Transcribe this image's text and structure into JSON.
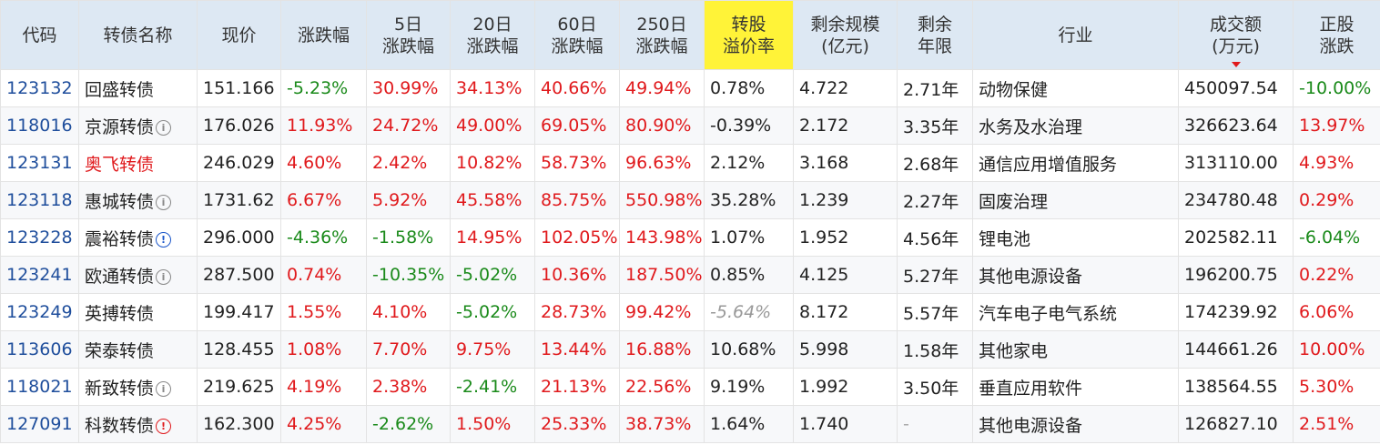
{
  "columns": [
    {
      "l1": "代码",
      "l2": ""
    },
    {
      "l1": "转债名称",
      "l2": ""
    },
    {
      "l1": "现价",
      "l2": ""
    },
    {
      "l1": "涨跌幅",
      "l2": ""
    },
    {
      "l1": "5日",
      "l2": "涨跌幅"
    },
    {
      "l1": "20日",
      "l2": "涨跌幅"
    },
    {
      "l1": "60日",
      "l2": "涨跌幅"
    },
    {
      "l1": "250日",
      "l2": "涨跌幅"
    },
    {
      "l1": "转股",
      "l2": "溢价率"
    },
    {
      "l1": "剩余规模",
      "l2": "(亿元)"
    },
    {
      "l1": "剩余",
      "l2": "年限"
    },
    {
      "l1": "行业",
      "l2": ""
    },
    {
      "l1": "成交额",
      "l2": "(万元)"
    },
    {
      "l1": "正股",
      "l2": "涨跌"
    }
  ],
  "sorted_column": "成交额",
  "sort_direction": "descending",
  "colors": {
    "up": "#e0191c",
    "down": "#1a8a1a",
    "code": "#1f4e9c",
    "header_bg": "#dde8f3",
    "highlight_header": "#fff338"
  },
  "rows": [
    {
      "code": "123132",
      "name": "回盛转债",
      "icon": null,
      "name_color": "default",
      "price": "151.166",
      "chg": "-5.23%",
      "chg5": "30.99%",
      "chg20": "34.13%",
      "chg60": "40.66%",
      "chg250": "49.94%",
      "premium": "0.78%",
      "scale": "4.722",
      "years": "2.71年",
      "industry": "动物保健",
      "turnover": "450097.54",
      "stock_chg": "-10.00%"
    },
    {
      "code": "118016",
      "name": "京源转债",
      "icon": "info-grey",
      "name_color": "default",
      "price": "176.026",
      "chg": "11.93%",
      "chg5": "24.72%",
      "chg20": "49.00%",
      "chg60": "69.05%",
      "chg250": "80.90%",
      "premium": "-0.39%",
      "scale": "2.172",
      "years": "3.35年",
      "industry": "水务及水治理",
      "turnover": "326623.64",
      "stock_chg": "13.97%"
    },
    {
      "code": "123131",
      "name": "奥飞转债",
      "icon": null,
      "name_color": "red",
      "price": "246.029",
      "chg": "4.60%",
      "chg5": "2.42%",
      "chg20": "10.82%",
      "chg60": "58.73%",
      "chg250": "96.63%",
      "premium": "2.12%",
      "scale": "3.168",
      "years": "2.68年",
      "industry": "通信应用增值服务",
      "turnover": "313110.00",
      "stock_chg": "4.93%"
    },
    {
      "code": "123118",
      "name": "惠城转债",
      "icon": "info-grey",
      "name_color": "default",
      "price": "1731.62",
      "chg": "6.67%",
      "chg5": "5.92%",
      "chg20": "45.58%",
      "chg60": "85.75%",
      "chg250": "550.98%",
      "premium": "35.28%",
      "scale": "1.239",
      "years": "2.27年",
      "industry": "固废治理",
      "turnover": "234780.48",
      "stock_chg": "0.29%"
    },
    {
      "code": "123228",
      "name": "震裕转债",
      "icon": "info-blue",
      "name_color": "default",
      "price": "296.000",
      "chg": "-4.36%",
      "chg5": "-1.58%",
      "chg20": "14.95%",
      "chg60": "102.05%",
      "chg250": "143.98%",
      "premium": "1.07%",
      "scale": "1.952",
      "years": "4.56年",
      "industry": "锂电池",
      "turnover": "202582.11",
      "stock_chg": "-6.04%"
    },
    {
      "code": "123241",
      "name": "欧通转债",
      "icon": "info-grey",
      "name_color": "default",
      "price": "287.500",
      "chg": "0.74%",
      "chg5": "-10.35%",
      "chg20": "-5.02%",
      "chg60": "10.36%",
      "chg250": "187.50%",
      "premium": "0.85%",
      "scale": "4.125",
      "years": "5.27年",
      "industry": "其他电源设备",
      "turnover": "196200.75",
      "stock_chg": "0.22%"
    },
    {
      "code": "123249",
      "name": "英搏转债",
      "icon": null,
      "name_color": "default",
      "price": "199.417",
      "chg": "1.55%",
      "chg5": "4.10%",
      "chg20": "-5.02%",
      "chg60": "28.73%",
      "chg250": "99.42%",
      "premium": "-5.64%",
      "premium_muted": true,
      "scale": "8.172",
      "years": "5.57年",
      "industry": "汽车电子电气系统",
      "turnover": "174239.92",
      "stock_chg": "6.06%"
    },
    {
      "code": "113606",
      "name": "荣泰转债",
      "icon": null,
      "name_color": "default",
      "price": "128.455",
      "chg": "1.08%",
      "chg5": "7.70%",
      "chg20": "9.75%",
      "chg60": "13.44%",
      "chg250": "16.88%",
      "premium": "10.68%",
      "scale": "5.998",
      "years": "1.58年",
      "industry": "其他家电",
      "turnover": "144661.26",
      "stock_chg": "10.00%"
    },
    {
      "code": "118021",
      "name": "新致转债",
      "icon": "info-grey",
      "name_color": "default",
      "price": "219.625",
      "chg": "4.19%",
      "chg5": "2.38%",
      "chg20": "-2.41%",
      "chg60": "21.13%",
      "chg250": "22.56%",
      "premium": "9.19%",
      "scale": "1.992",
      "years": "3.50年",
      "industry": "垂直应用软件",
      "turnover": "138564.55",
      "stock_chg": "5.30%"
    },
    {
      "code": "127091",
      "name": "科数转债",
      "icon": "info-red",
      "name_color": "default",
      "price": "162.300",
      "chg": "4.25%",
      "chg5": "-2.62%",
      "chg20": "1.50%",
      "chg60": "25.33%",
      "chg250": "38.73%",
      "premium": "1.64%",
      "scale": "1.740",
      "years": "-",
      "industry": "其他电源设备",
      "turnover": "126827.10",
      "stock_chg": "2.51%"
    }
  ]
}
